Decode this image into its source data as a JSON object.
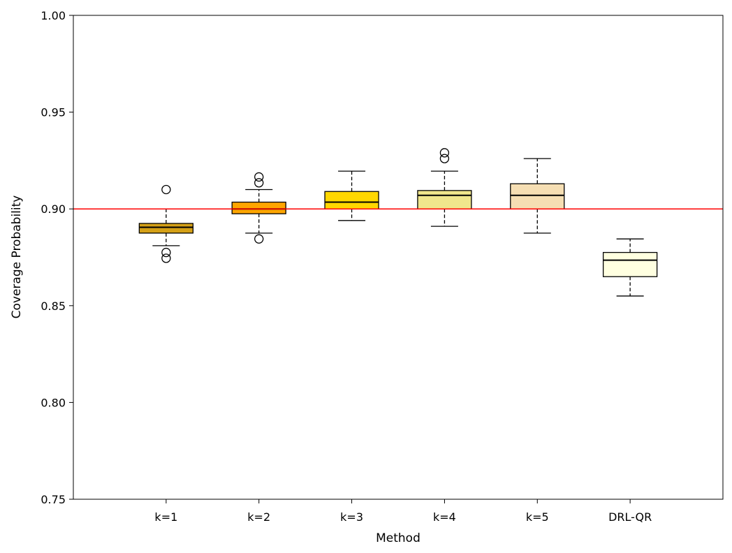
{
  "chart_data": {
    "type": "box",
    "xlabel": "Method",
    "ylabel": "Coverage Probability",
    "ylim": [
      0.75,
      1.0
    ],
    "yticks": [
      "0.75",
      "0.80",
      "0.85",
      "0.90",
      "0.95",
      "1.00"
    ],
    "reference_line": {
      "value": 0.9,
      "color": "#ff0000"
    },
    "categories": [
      "k=1",
      "k=2",
      "k=3",
      "k=4",
      "k=5",
      "DRL-QR"
    ],
    "boxes": [
      {
        "label": "k=1",
        "color": "#d4a017",
        "whisker_low": 0.881,
        "q1": 0.8875,
        "median": 0.8905,
        "q3": 0.8925,
        "whisker_high": 0.9,
        "outliers": [
          0.91,
          0.8775,
          0.8745
        ]
      },
      {
        "label": "k=2",
        "color": "#ffa500",
        "whisker_low": 0.8875,
        "q1": 0.8975,
        "median": 0.9,
        "q3": 0.9035,
        "whisker_high": 0.91,
        "outliers": [
          0.9165,
          0.9135,
          0.8845
        ]
      },
      {
        "label": "k=3",
        "color": "#ffd700",
        "whisker_low": 0.894,
        "q1": 0.9,
        "median": 0.9035,
        "q3": 0.909,
        "whisker_high": 0.9195,
        "outliers": []
      },
      {
        "label": "k=4",
        "color": "#f0e68c",
        "whisker_low": 0.891,
        "q1": 0.9,
        "median": 0.907,
        "q3": 0.9095,
        "whisker_high": 0.9195,
        "outliers": [
          0.929,
          0.926
        ]
      },
      {
        "label": "k=5",
        "color": "#f5deb3",
        "whisker_low": 0.8875,
        "q1": 0.9,
        "median": 0.907,
        "q3": 0.913,
        "whisker_high": 0.926,
        "outliers": []
      },
      {
        "label": "DRL-QR",
        "color": "#ffffe0",
        "whisker_low": 0.855,
        "q1": 0.865,
        "median": 0.8735,
        "q3": 0.8775,
        "whisker_high": 0.8845,
        "outliers": []
      }
    ]
  }
}
